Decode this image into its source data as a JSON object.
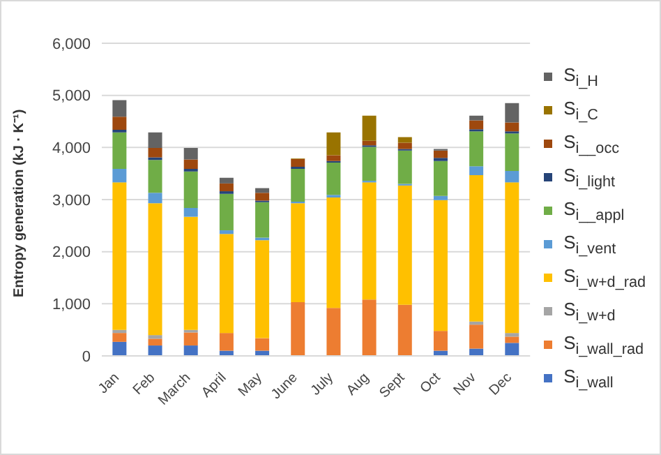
{
  "chart_data": {
    "type": "bar",
    "stacked": true,
    "ylabel": "Entropy generation (kJ · K⁻¹)",
    "categories": [
      "Jan",
      "Feb",
      "March",
      "April",
      "May",
      "June",
      "July",
      "Aug",
      "Sept",
      "Oct",
      "Nov",
      "Dec"
    ],
    "ylim": [
      0,
      6000
    ],
    "yticks": [
      {
        "value": 0,
        "label": "0"
      },
      {
        "value": 1000,
        "label": "1,000"
      },
      {
        "value": 2000,
        "label": "2,000"
      },
      {
        "value": 3000,
        "label": "3,000"
      },
      {
        "value": 4000,
        "label": "4,000"
      },
      {
        "value": 5000,
        "label": "5,000"
      },
      {
        "value": 6000,
        "label": "6,000"
      }
    ],
    "grid": "y",
    "legend": "right",
    "series": [
      {
        "name": "S$_{i_wall}$",
        "color": "#4472c4",
        "values": [
          270,
          200,
          200,
          100,
          100,
          0,
          0,
          0,
          0,
          100,
          140,
          250
        ]
      },
      {
        "name": "S$_{i_wall_rad}$",
        "color": "#ed7d31",
        "values": [
          170,
          130,
          250,
          340,
          240,
          1030,
          920,
          1080,
          980,
          380,
          460,
          120
        ]
      },
      {
        "name": "S$_{i_w+d}$",
        "color": "#a5a5a5",
        "values": [
          60,
          70,
          50,
          null,
          null,
          0,
          0,
          0,
          0,
          null,
          60,
          70
        ]
      },
      {
        "name": "S$_{i_w+d_rad}$",
        "color": "#ffc000",
        "values": [
          2830,
          2530,
          2170,
          1900,
          1880,
          1900,
          2120,
          2250,
          2290,
          2510,
          2810,
          2890
        ]
      },
      {
        "name": "S$_{i_vent}$",
        "color": "#5b9bd5",
        "values": [
          260,
          200,
          170,
          70,
          50,
          30,
          50,
          30,
          30,
          80,
          170,
          220
        ]
      },
      {
        "name": "S$_{i__appl}$",
        "color": "#70ad47",
        "values": [
          700,
          630,
          700,
          700,
          680,
          630,
          620,
          650,
          640,
          670,
          670,
          720
        ]
      },
      {
        "name": "S$_{i_light}$",
        "color": "#264478",
        "values": [
          50,
          50,
          50,
          50,
          30,
          40,
          30,
          30,
          30,
          60,
          40,
          40
        ]
      },
      {
        "name": "S$_{i__occ}$",
        "color": "#9e480e",
        "values": [
          250,
          180,
          180,
          150,
          150,
          150,
          110,
          90,
          120,
          140,
          170,
          170
        ]
      },
      {
        "name": "S$_{i_C}$",
        "color": "#997300",
        "values": [
          0,
          0,
          0,
          0,
          0,
          10,
          440,
          480,
          110,
          0,
          0,
          0
        ]
      },
      {
        "name": "S$_{i_H}$",
        "color": "#636363",
        "values": [
          320,
          300,
          220,
          110,
          90,
          0,
          0,
          0,
          0,
          30,
          90,
          370
        ]
      }
    ]
  }
}
